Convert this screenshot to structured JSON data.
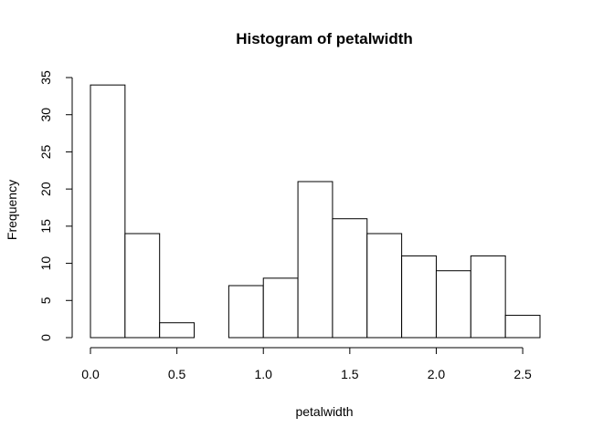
{
  "chart_data": {
    "type": "bar",
    "title": "Histogram of petalwidth",
    "xlabel": "petalwidth",
    "ylabel": "Frequency",
    "bin_edges": [
      0.0,
      0.2,
      0.4,
      0.6,
      0.8,
      1.0,
      1.2,
      1.4,
      1.6,
      1.8,
      2.0,
      2.2,
      2.4,
      2.6
    ],
    "values": [
      34,
      14,
      2,
      0,
      7,
      8,
      21,
      16,
      14,
      11,
      9,
      11,
      3
    ],
    "xlim": [
      0.0,
      2.6
    ],
    "ylim": [
      0,
      35
    ],
    "x_ticks": [
      0.0,
      0.5,
      1.0,
      1.5,
      2.0,
      2.5
    ],
    "x_tick_labels": [
      "0.0",
      "0.5",
      "1.0",
      "1.5",
      "2.0",
      "2.5"
    ],
    "y_ticks": [
      0,
      5,
      10,
      15,
      20,
      25,
      30,
      35
    ],
    "y_tick_labels": [
      "0",
      "5",
      "10",
      "15",
      "20",
      "25",
      "30",
      "35"
    ],
    "grid": false,
    "legend": "none",
    "bar_fill": "#ffffff",
    "bar_stroke": "#000000"
  }
}
